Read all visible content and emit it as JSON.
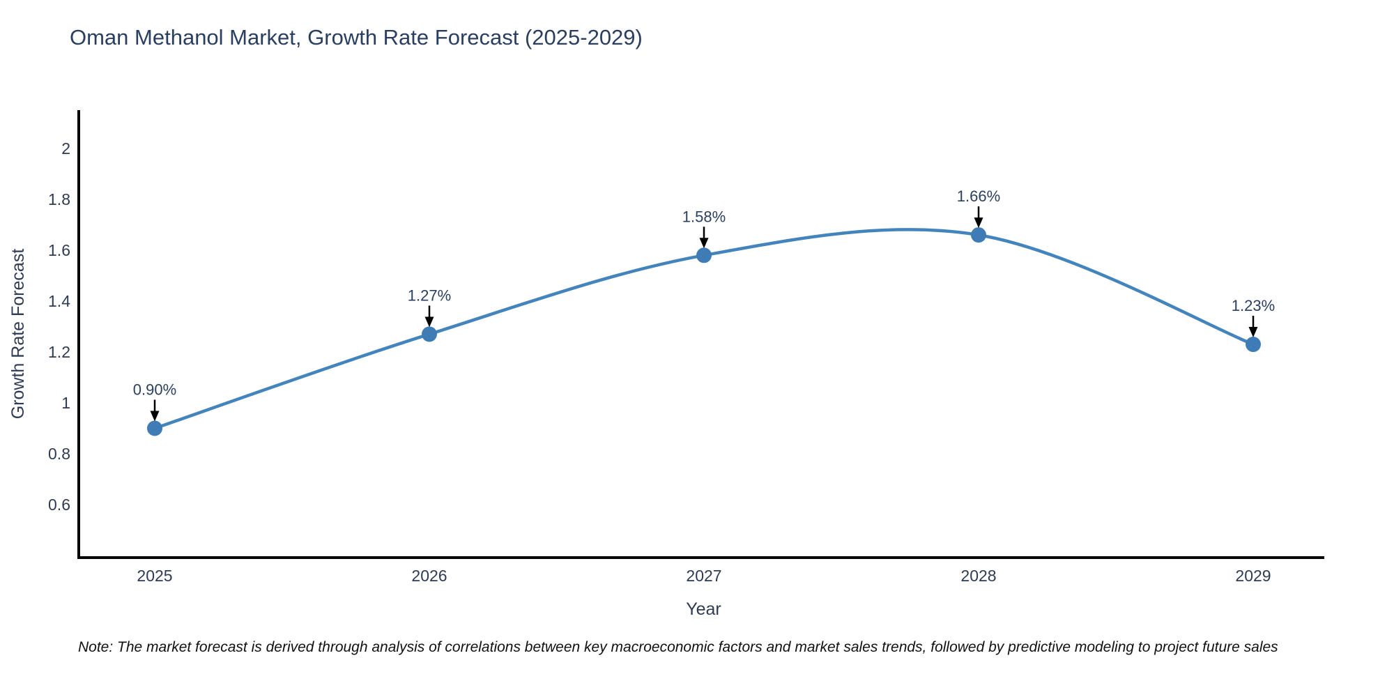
{
  "title": "Oman Methanol Market, Growth Rate Forecast (2025-2029)",
  "note": "Note: The market forecast is derived through analysis of correlations between key macroeconomic factors and market sales trends, followed by predictive modeling to project future sales",
  "chart_data": {
    "type": "line",
    "title": "Oman Methanol Market, Growth Rate Forecast (2025-2029)",
    "xlabel": "Year",
    "ylabel": "Growth Rate Forecast",
    "categories": [
      "2025",
      "2026",
      "2027",
      "2028",
      "2029"
    ],
    "values": [
      0.9,
      1.27,
      1.58,
      1.66,
      1.23
    ],
    "annotations": [
      "0.90%",
      "1.27%",
      "1.58%",
      "1.66%",
      "1.23%"
    ],
    "ytick_labels": [
      "0.6",
      "0.8",
      "1",
      "1.2",
      "1.4",
      "1.6",
      "1.8",
      "2"
    ],
    "ylim": [
      0.39,
      2.15
    ],
    "line_shape": "spline",
    "grid": false,
    "legend": "none",
    "colors": {
      "line": "#4484bd",
      "marker": "#3f7cb6",
      "arrow": "#000000",
      "axis": "#000000",
      "text": "#2a3f5f"
    }
  }
}
